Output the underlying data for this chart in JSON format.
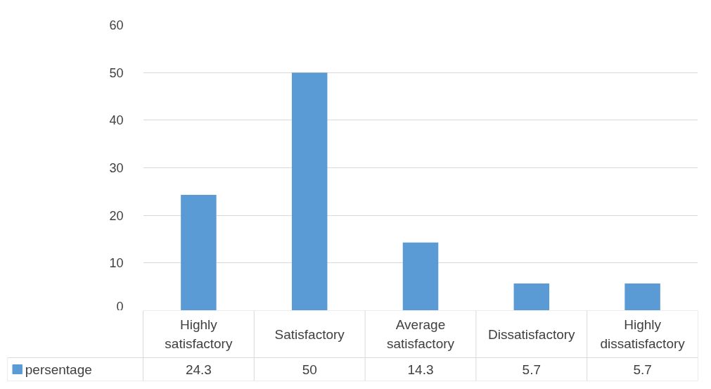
{
  "chart_data": {
    "type": "bar",
    "categories": [
      "Highly satisfactory",
      "Satisfactory",
      "Average satisfactory",
      "Dissatisfactory",
      "Highly dissatisfactory"
    ],
    "series": [
      {
        "name": "persentage",
        "color": "#5b9bd5",
        "values": [
          24.3,
          50,
          14.3,
          5.7,
          5.7
        ]
      }
    ],
    "ylim": [
      0,
      60
    ],
    "yticks": [
      0,
      10,
      20,
      30,
      40,
      50,
      60
    ],
    "grid": "y",
    "data_labels": true,
    "legend": "bottom"
  }
}
